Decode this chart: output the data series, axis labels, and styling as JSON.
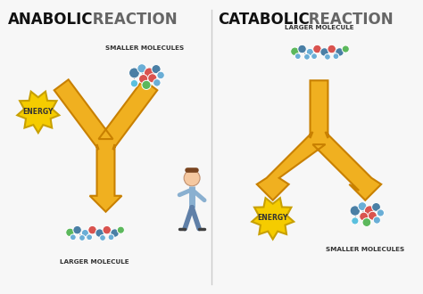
{
  "bg_color": "#f7f7f7",
  "divider_color": "#cccccc",
  "title_left_bold": "ANABOLIC",
  "title_left_regular": " REACTION",
  "title_right_bold": "CATABOLIC",
  "title_right_regular": " REACTION",
  "title_bold_color": "#111111",
  "title_regular_color": "#666666",
  "label_smaller_molecules_left": "SMALLER MOLECULES",
  "label_larger_molecule_left": "LARGER MOLECULE",
  "label_larger_molecule_right": "LARGER MOLECULE",
  "label_smaller_molecules_right": "SMALLER MOLECULES",
  "label_energy": "ENERGY",
  "arrow_color": "#f0b020",
  "arrow_edge_color": "#c88000",
  "energy_badge_color": "#f5cc00",
  "energy_badge_edge": "#c8a000",
  "molecule_colors": {
    "blue_dark": "#4a7fa5",
    "blue_light": "#6aaed6",
    "red": "#d9534f",
    "green": "#5cb85c",
    "teal": "#5bc0de"
  }
}
